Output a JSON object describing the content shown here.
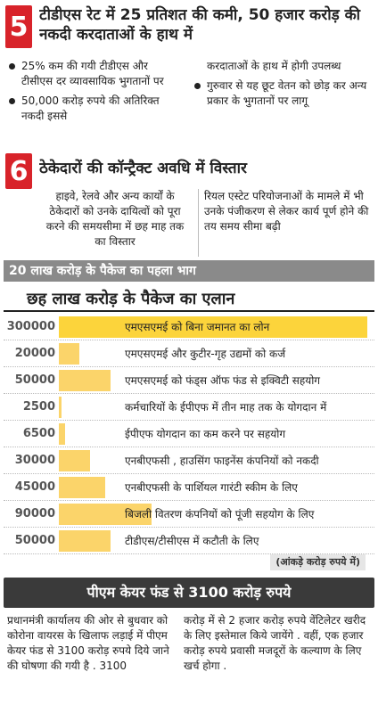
{
  "section5": {
    "number": "5",
    "title": "टीडीएस रेट में 25 प्रतिशत की कमी, 50 हजार करोड़ की नकदी करदाताओं के हाथ में",
    "left": [
      "25% कम की गयी टीडीएस और टीसीएस दर व्यावसायिक भुगतानों पर",
      "50,000 करोड़ रुपये की अतिरिक्त नकदी इससे"
    ],
    "right": [
      "करदाताओं के हाथ में होगी उपलब्ध",
      "गुरुवार से यह छूट वेतन को छोड़ कर अन्य प्रकार के भुगतानों पर लागू"
    ]
  },
  "section6": {
    "number": "6",
    "title": "ठेकेदारों की कॉन्ट्रैक्ट अवधि में विस्तार",
    "left": "हाइवे, रेलवे और अन्य कार्यों के ठेकेदारों को उनके दायित्वों को पूरा करने की समयसीमा में छह माह तक का विस्तार",
    "right": "रियल एस्टेट परियोजनाओं के मामले में भी उनके पंजीकरण से लेकर कार्य पूर्ण होने की तय समय सीमा बढ़ी"
  },
  "package": {
    "banner": "20 लाख करोड़ के पैकेज का पहला भाग",
    "title": "छह लाख करोड़ के पैकेज का एलान",
    "items": [
      {
        "value": 300000,
        "label": "एमएसएमई को बिना जमानत का लोन"
      },
      {
        "value": 20000,
        "label": "एमएसएमई और कुटीर-गृह उद्यमों को कर्ज"
      },
      {
        "value": 50000,
        "label": "एमएसएमई को फंड्स ऑफ फंड से इक्विटी सहयोग"
      },
      {
        "value": 2500,
        "label": "कर्मचारियों के ईपीएफ में तीन माह तक के योगदान में"
      },
      {
        "value": 6500,
        "label": "ईपीएफ योगदान का कम करने पर सहयोग"
      },
      {
        "value": 30000,
        "label": "एनबीएफसी , हाउसिंग फाइनेंस कंपनियों को नकदी"
      },
      {
        "value": 45000,
        "label": "एनबीएफसी के पार्शियल गारंटी स्कीम के लिए"
      },
      {
        "value": 90000,
        "label": "बिजली वितरण कंपनियों को पूंजी सहयोग के लिए"
      },
      {
        "value": 50000,
        "label": "टीडीएस/टीसीएस में कटौती के लिए"
      }
    ],
    "note": "(आंकड़े करोड़ रुपये में)"
  },
  "pmcares": {
    "title": "पीएम केयर फंड से 3100 करोड़ रुपये",
    "left": "प्रधानमंत्री कार्यालय की ओर से बुधवार को कोरोना वायरस के खिलाफ लड़ाई में पीएम केयर फंड से 3100 करोड़ रुपये दिये जाने की घोषणा की गयी है . 3100",
    "right": "करोड़ में से 2 हजार करोड़ रुपये वेंटिलेटर खरीद के लिए इस्तेमाल किये जायेंगे . वहीं, एक हजार करोड़ रुपये प्रवासी मजदूरों के कल्याण के लिए खर्च होगा ."
  }
}
